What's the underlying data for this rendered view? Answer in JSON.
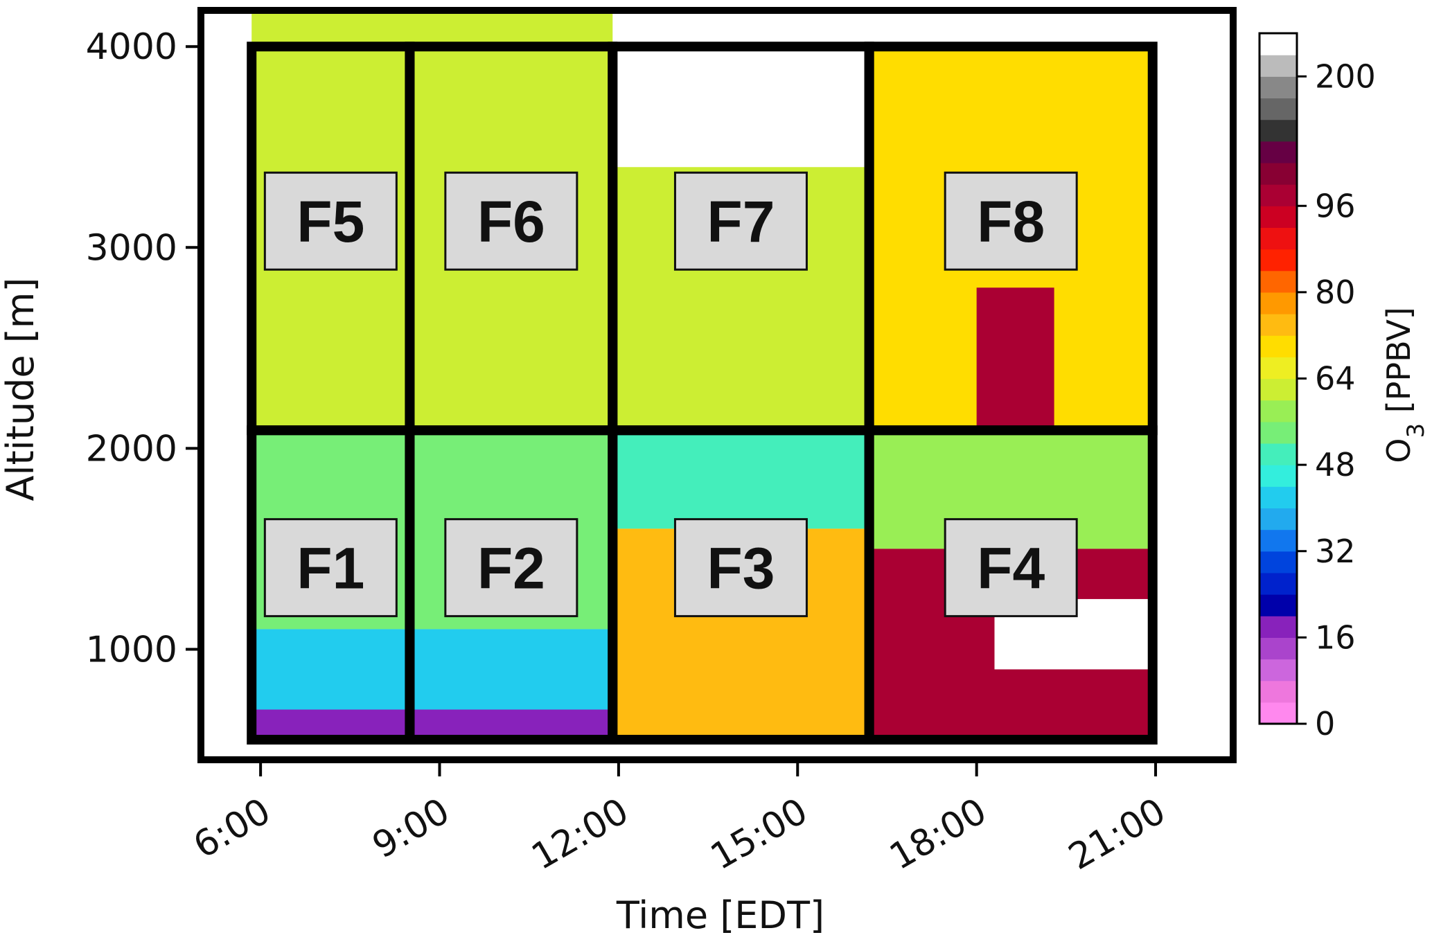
{
  "chart_data": {
    "type": "heatmap",
    "title": "",
    "xlabel": "Time [EDT]",
    "ylabel": "Altitude [m]",
    "x_ticks": [
      "6:00",
      "9:00",
      "12:00",
      "15:00",
      "18:00",
      "21:00"
    ],
    "x_tick_hours": [
      6,
      9,
      12,
      15,
      18,
      21
    ],
    "xlim_hours": [
      5.0,
      22.3
    ],
    "y_ticks": [
      1000,
      2000,
      3000,
      4000
    ],
    "ylim": [
      450,
      4180
    ],
    "colorbar": {
      "label_main": "O",
      "label_sub": "3",
      "label_unit": " [PPBV]",
      "tick_labels": [
        "0",
        "16",
        "32",
        "48",
        "64",
        "80",
        "96",
        "200"
      ],
      "tick_values": [
        0,
        16,
        32,
        48,
        64,
        80,
        96,
        200
      ],
      "colors": [
        "#ff88ee",
        "#ee77dd",
        "#cc66dd",
        "#aa44cc",
        "#8822bb",
        "#0000aa",
        "#0022cc",
        "#0044dd",
        "#1177ee",
        "#22aaee",
        "#22ccee",
        "#33eedd",
        "#44eebb",
        "#77ee77",
        "#99ee55",
        "#ccee33",
        "#eeee22",
        "#ffdd00",
        "#ffbb11",
        "#ff9900",
        "#ff6600",
        "#ff2200",
        "#ee1111",
        "#cc0022",
        "#aa0033",
        "#880033",
        "#660044",
        "#333333",
        "#666666",
        "#888888",
        "#bbbbbb",
        "#ffffff"
      ]
    },
    "panels": [
      {
        "label": "F1",
        "t0": 5.85,
        "t1": 8.5,
        "z0": 550,
        "z1": 2090
      },
      {
        "label": "F2",
        "t0": 8.5,
        "t1": 11.9,
        "z0": 550,
        "z1": 2090
      },
      {
        "label": "F3",
        "t0": 11.9,
        "t1": 16.2,
        "z0": 550,
        "z1": 2090
      },
      {
        "label": "F4",
        "t0": 16.2,
        "t1": 20.95,
        "z0": 550,
        "z1": 2090
      },
      {
        "label": "F5",
        "t0": 5.85,
        "t1": 8.5,
        "z0": 2090,
        "z1": 4000
      },
      {
        "label": "F6",
        "t0": 8.5,
        "t1": 11.9,
        "z0": 2090,
        "z1": 4000
      },
      {
        "label": "F7",
        "t0": 11.9,
        "t1": 16.2,
        "z0": 2090,
        "z1": 4000
      },
      {
        "label": "F8",
        "t0": 16.2,
        "t1": 20.95,
        "z0": 2090,
        "z1": 4000
      }
    ],
    "field_regions": [
      {
        "t0": 5.85,
        "t1": 11.9,
        "z0": 2090,
        "z1": 4180,
        "o3": 55
      },
      {
        "t0": 5.85,
        "t1": 11.9,
        "z0": 1100,
        "z1": 2090,
        "o3": 47
      },
      {
        "t0": 5.85,
        "t1": 11.9,
        "z0": 700,
        "z1": 1100,
        "o3": 38
      },
      {
        "t0": 5.85,
        "t1": 11.9,
        "z0": 550,
        "z1": 700,
        "o3": 14
      },
      {
        "t0": 11.9,
        "t1": 16.2,
        "z0": 2090,
        "z1": 3400,
        "o3": 55
      },
      {
        "t0": 11.9,
        "t1": 16.2,
        "z0": 1600,
        "z1": 2090,
        "o3": 45
      },
      {
        "t0": 11.9,
        "t1": 16.2,
        "z0": 550,
        "z1": 1600,
        "o3": 66
      },
      {
        "t0": 16.2,
        "t1": 20.95,
        "z0": 2090,
        "z1": 4000,
        "o3": 60
      },
      {
        "t0": 18.0,
        "t1": 19.3,
        "z0": 2090,
        "z1": 2800,
        "o3": 86
      },
      {
        "t0": 16.2,
        "t1": 20.95,
        "z0": 1500,
        "z1": 2090,
        "o3": 50
      },
      {
        "t0": 16.2,
        "t1": 20.95,
        "z0": 550,
        "z1": 1500,
        "o3": 84
      },
      {
        "t0": 18.3,
        "t1": 20.95,
        "z0": 900,
        "z1": 1250,
        "o3": 200
      }
    ]
  }
}
